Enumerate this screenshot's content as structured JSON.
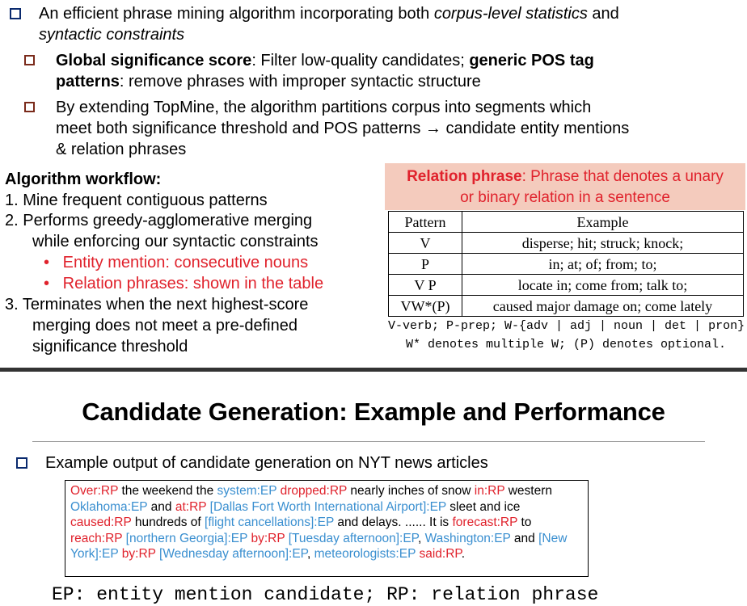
{
  "slide1": {
    "bullet_main_1": "An efficient phrase mining algorithm incorporating both ",
    "bullet_main_em1": "corpus-level statistics",
    "bullet_main_2": " and",
    "bullet_main_line2": "syntactic constraints",
    "sub1_bold1": "Global significance score",
    "sub1_text1": ":  Filter low-quality candidates; ",
    "sub1_bold2": "generic POS tag",
    "sub1_bold3": "patterns",
    "sub1_text2": ": remove phrases with improper syntactic structure",
    "sub2_line1": "By extending TopMine, the algorithm partitions corpus into segments which",
    "sub2_line2": "meet both significance threshold and POS patterns → candidate entity mentions",
    "sub2_line3": "& relation phrases",
    "workflow_title": "Algorithm workflow:",
    "wf1": "1.  Mine frequent contiguous patterns",
    "wf2a": "2.  Performs greedy-agglomerative merging",
    "wf2b": "while enforcing our syntactic constraints",
    "wf_b1": "Entity mention: consecutive nouns",
    "wf_b2": "Relation phrases: shown in the table",
    "wf3a": "3.  Terminates when the next highest-score",
    "wf3b": "merging does not meet a pre-defined",
    "wf3c": "significance threshold",
    "box_bold": "Relation phrase",
    "box_text1": ": Phrase that denotes a unary",
    "box_text2": "or binary relation in a sentence",
    "table_header": [
      "Pattern",
      "Example"
    ],
    "table_rows": [
      [
        "V",
        "disperse; hit; struck; knock;"
      ],
      [
        "P",
        "in; at; of; from; to;"
      ],
      [
        "V P",
        "locate in; come from; talk to;"
      ],
      [
        "VW*(P)",
        "caused major damage on; come lately"
      ]
    ],
    "legend1": "V-verb; P-prep; W-{adv | adj | noun | det | pron}",
    "legend2": "W* denotes multiple W; (P) denotes optional."
  },
  "slide2": {
    "title": "Candidate Generation: Example and Performance",
    "bullet": "Example output of candidate generation on NYT news articles",
    "example_tokens": [
      [
        "Over:RP",
        "red"
      ],
      [
        " the weekend the ",
        "black"
      ],
      [
        "system:EP",
        "blue"
      ],
      [
        " ",
        "black"
      ],
      [
        "dropped:RP",
        "red"
      ],
      [
        " nearly inches of snow ",
        "black"
      ],
      [
        "in:RP",
        "red"
      ],
      [
        " western ",
        "black"
      ],
      [
        "Oklahoma:EP",
        "blue"
      ],
      [
        " and ",
        "black"
      ],
      [
        "at:RP",
        "red"
      ],
      [
        " ",
        "black"
      ],
      [
        "[Dallas Fort Worth International Airport]:EP",
        "blue"
      ],
      [
        " sleet and ice ",
        "black"
      ],
      [
        "caused:RP",
        "red"
      ],
      [
        " hundreds of ",
        "black"
      ],
      [
        "[flight cancellations]:EP",
        "blue"
      ],
      [
        " and delays. ...... It is ",
        "black"
      ],
      [
        "forecast:RP",
        "red"
      ],
      [
        " to ",
        "black"
      ],
      [
        "reach:RP",
        "red"
      ],
      [
        " ",
        "black"
      ],
      [
        "[northern Georgia]:EP",
        "blue"
      ],
      [
        " ",
        "black"
      ],
      [
        "by:RP",
        "red"
      ],
      [
        " ",
        "black"
      ],
      [
        "[Tuesday afternoon]:EP",
        "blue"
      ],
      [
        ", ",
        "black"
      ],
      [
        "Washington:EP",
        "blue"
      ],
      [
        " and ",
        "black"
      ],
      [
        "[New York]:EP",
        "blue"
      ],
      [
        " ",
        "black"
      ],
      [
        "by:RP",
        "red"
      ],
      [
        " ",
        "black"
      ],
      [
        "[Wednesday afternoon]:EP",
        "blue"
      ],
      [
        ", ",
        "black"
      ],
      [
        "meteorologists:EP",
        "blue"
      ],
      [
        " ",
        "black"
      ],
      [
        "said:RP",
        "red"
      ],
      [
        ".",
        "black"
      ]
    ],
    "footer": "EP: entity mention candidate; RP: relation phrase"
  },
  "colors": {
    "ep": "#3a8fd0",
    "rp": "#e0222c",
    "box_bg": "#f4cbbd",
    "bullet_blue": "#0a2a6e"
  }
}
